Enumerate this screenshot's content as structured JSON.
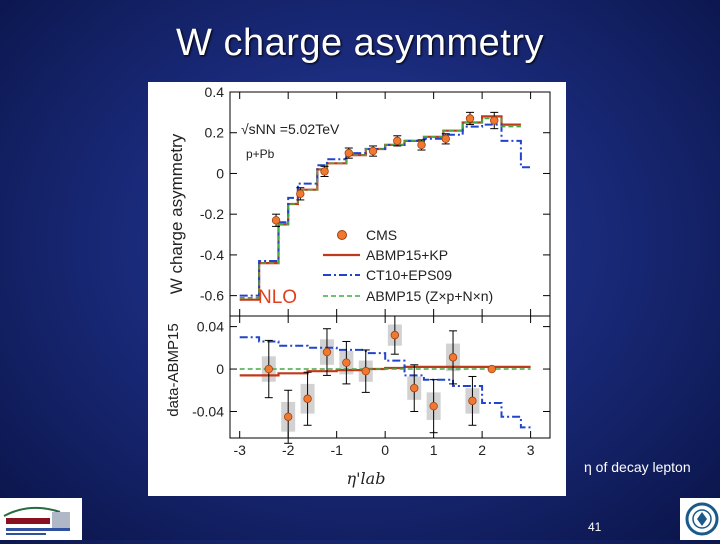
{
  "slide": {
    "title": "W charge asymmetry",
    "caption": "η of decay lepton",
    "page_number": "41"
  },
  "logos": {
    "left": "berkeley-lab-logo",
    "right": "university-seal-logo"
  },
  "colors": {
    "background": "#1a2a7a",
    "cms": "#f07830",
    "abmp_kp": "#c0391b",
    "ct10": "#2244cc",
    "abmp15": "#44aa44",
    "nlo_text": "#e04020",
    "error_band": "#bfbfbf"
  },
  "chart_data": [
    {
      "type": "line",
      "ylabel": "W charge asymmetry",
      "ylim": [
        -0.7,
        0.4
      ],
      "yticks": [
        0.4,
        0.2,
        0,
        -0.2,
        -0.4,
        -0.6
      ],
      "ytick_labels": [
        "0.4",
        "0.2",
        "0",
        "-0.2",
        "-0.4",
        "-0.6"
      ],
      "xlim": [
        -3.2,
        3.4
      ],
      "annotations": [
        "√sNN =5.02TeV",
        "p+Pb",
        "NLO"
      ],
      "legend": {
        "placement": "center-right",
        "entries": [
          "CMS",
          "ABMP15+KP",
          "CT10+EPS09",
          "ABMP15 (Z×p+N×n)"
        ]
      },
      "cms": {
        "name": "CMS",
        "x": [
          -2.25,
          -1.75,
          -1.25,
          -0.75,
          -0.25,
          0.25,
          0.75,
          1.25,
          1.75,
          2.25
        ],
        "y": [
          -0.23,
          -0.1,
          0.01,
          0.1,
          0.11,
          0.16,
          0.14,
          0.17,
          0.27,
          0.26
        ],
        "err": [
          0.03,
          0.03,
          0.025,
          0.025,
          0.025,
          0.025,
          0.025,
          0.025,
          0.03,
          0.04
        ]
      },
      "series": [
        {
          "name": "ABMP15+KP",
          "style": "solid",
          "edges": [
            -3.0,
            -2.6,
            -2.2,
            -2.0,
            -1.8,
            -1.4,
            -1.2,
            -0.8,
            -0.4,
            0,
            0.4,
            0.8,
            1.2,
            1.6,
            2.0,
            2.4,
            2.8
          ],
          "values": [
            -0.62,
            -0.44,
            -0.25,
            -0.15,
            -0.08,
            0.02,
            0.05,
            0.09,
            0.12,
            0.14,
            0.16,
            0.18,
            0.21,
            0.25,
            0.28,
            0.24
          ]
        },
        {
          "name": "CT10+EPS09",
          "style": "dashdot",
          "edges": [
            -3.0,
            -2.6,
            -2.2,
            -2.0,
            -1.8,
            -1.4,
            -1.2,
            -0.8,
            -0.4,
            0,
            0.4,
            0.8,
            1.2,
            1.6,
            2.0,
            2.4,
            2.8,
            3.0
          ],
          "values": [
            -0.6,
            -0.43,
            -0.24,
            -0.12,
            -0.05,
            0.04,
            0.07,
            0.1,
            0.12,
            0.14,
            0.16,
            0.17,
            0.19,
            0.23,
            0.24,
            0.16,
            0.03
          ]
        },
        {
          "name": "ABMP15 (Z×p+N×n)",
          "style": "dashed",
          "edges": [
            -3.0,
            -2.6,
            -2.2,
            -2.0,
            -1.8,
            -1.4,
            -1.2,
            -0.8,
            -0.4,
            0,
            0.4,
            0.8,
            1.2,
            1.6,
            2.0,
            2.4,
            2.8
          ],
          "values": [
            -0.61,
            -0.44,
            -0.25,
            -0.15,
            -0.08,
            0.02,
            0.05,
            0.09,
            0.12,
            0.14,
            0.16,
            0.18,
            0.21,
            0.25,
            0.27,
            0.23
          ]
        }
      ]
    },
    {
      "type": "line",
      "xlabel": "η'lab",
      "ylabel": "data-ABMP15",
      "ylim": [
        -0.065,
        0.05
      ],
      "yticks": [
        0.04,
        0,
        -0.04
      ],
      "ytick_labels": [
        "0.04",
        "0",
        "-0.04"
      ],
      "xlim": [
        -3.2,
        3.4
      ],
      "xticks": [
        -3,
        -2,
        -1,
        0,
        1,
        2,
        3
      ],
      "xtick_labels": [
        "-3",
        "-2",
        "-1",
        "0",
        "1",
        "2",
        "3"
      ],
      "cms": {
        "name": "CMS",
        "x": [
          -2.4,
          -2.0,
          -1.6,
          -1.2,
          -0.8,
          -0.4,
          0.2,
          0.6,
          1.0,
          1.4,
          1.8,
          2.2
        ],
        "y": [
          0.0,
          -0.045,
          -0.028,
          0.016,
          0.006,
          -0.002,
          0.032,
          -0.018,
          -0.035,
          0.011,
          -0.03,
          0.0
        ],
        "err": [
          0.027,
          0.025,
          0.025,
          0.022,
          0.02,
          0.02,
          0.018,
          0.022,
          0.025,
          0.025,
          0.023,
          0.0
        ],
        "band": [
          0.012,
          0.014,
          0.014,
          0.012,
          0.011,
          0.01,
          0.01,
          0.011,
          0.013,
          0.013,
          0.012,
          0.0
        ]
      },
      "series": [
        {
          "name": "ABMP15+KP",
          "style": "solid",
          "edges": [
            -3.0,
            -2.6,
            -2.2,
            -1.6,
            -1.0,
            -0.4,
            0,
            0.4,
            0.8,
            1.4,
            2.0,
            2.6,
            3.0
          ],
          "values": [
            -0.006,
            -0.006,
            -0.004,
            -0.002,
            -0.001,
            0.0,
            0.001,
            0.002,
            0.002,
            0.002,
            0.002,
            0.002
          ]
        },
        {
          "name": "CT10+EPS09",
          "style": "dashdot",
          "edges": [
            -3.0,
            -2.6,
            -2.2,
            -1.6,
            -1.0,
            -0.4,
            0,
            0.4,
            0.8,
            1.4,
            2.0,
            2.4,
            2.8,
            3.0
          ],
          "values": [
            0.03,
            0.026,
            0.022,
            0.02,
            0.018,
            0.015,
            0.008,
            -0.006,
            -0.01,
            -0.016,
            -0.032,
            -0.045,
            -0.055
          ]
        },
        {
          "name": "ABMP15 (Z×p+N×n)",
          "style": "dashed",
          "edges": [
            -3.0,
            3.0
          ],
          "values": [
            0.0
          ]
        }
      ]
    }
  ]
}
